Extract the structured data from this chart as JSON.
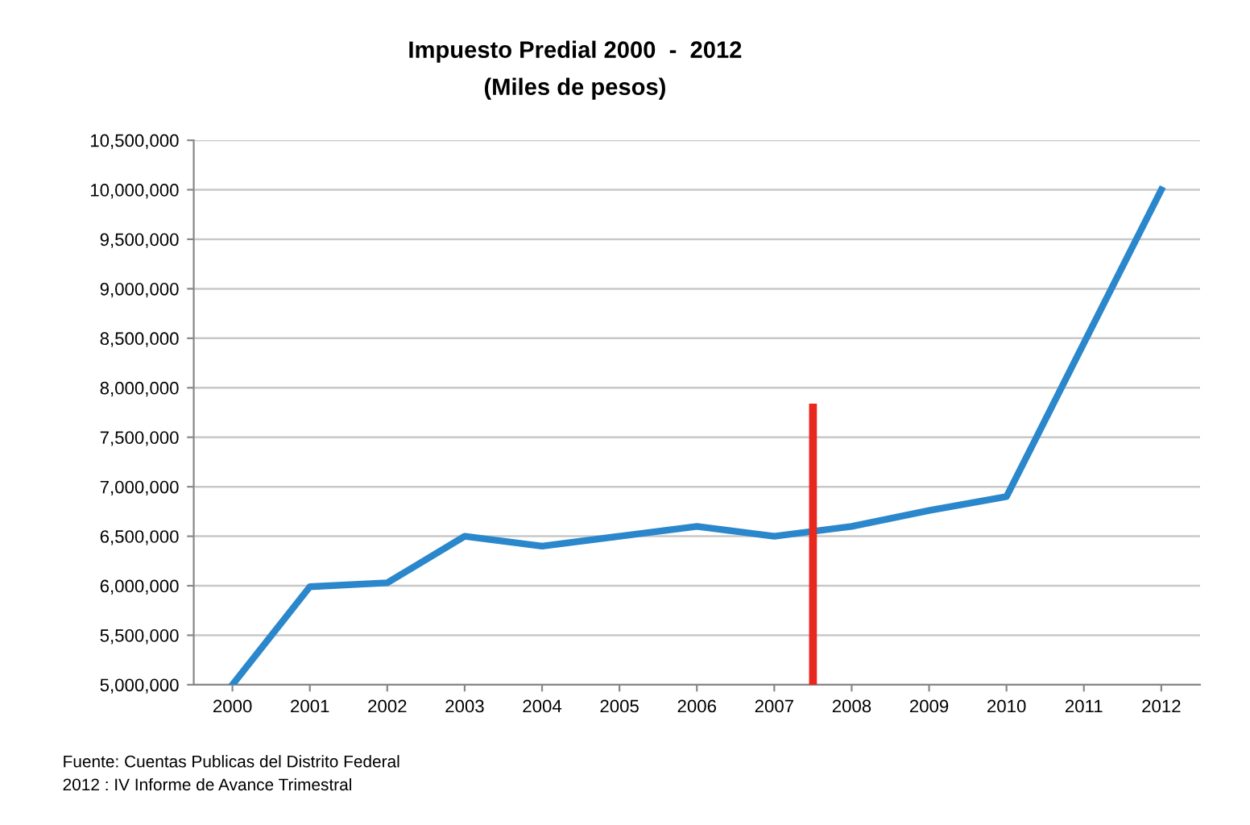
{
  "chart_data": {
    "type": "line",
    "title": "Impuesto Predial 2000  -  2012",
    "subtitle": "(Miles de pesos)",
    "x": [
      2000,
      2001,
      2002,
      2003,
      2004,
      2005,
      2006,
      2007,
      2008,
      2009,
      2010,
      2011,
      2012
    ],
    "series": [
      {
        "color": "#2b87cc",
        "values": [
          5000000,
          5990000,
          6030000,
          6500000,
          6400000,
          6500000,
          6600000,
          6500000,
          6600000,
          6760000,
          6900000,
          8450000,
          10000000
        ]
      },
      {
        "color": "#e8281e",
        "x": [
          2007.5,
          2007.5
        ],
        "values": [
          5000000,
          7800000
        ]
      }
    ],
    "xlim": [
      1999.5,
      2012.5
    ],
    "xticks": [
      2000,
      2001,
      2002,
      2003,
      2004,
      2005,
      2006,
      2007,
      2008,
      2009,
      2010,
      2011,
      2012
    ],
    "ylim": [
      5000000,
      10500000
    ],
    "yticks": [
      {
        "value": 5000000,
        "label": "5,000,000"
      },
      {
        "value": 5500000,
        "label": "5,500,000"
      },
      {
        "value": 6000000,
        "label": "6,000,000"
      },
      {
        "value": 6500000,
        "label": "6,500,000"
      },
      {
        "value": 7000000,
        "label": "7,000,000"
      },
      {
        "value": 7500000,
        "label": "7,500,000"
      },
      {
        "value": 8000000,
        "label": "8,000,000"
      },
      {
        "value": 8500000,
        "label": "8,500,000"
      },
      {
        "value": 9000000,
        "label": "9,000,000"
      },
      {
        "value": 9500000,
        "label": "9,500,000"
      },
      {
        "value": 10000000,
        "label": "10,000,000"
      },
      {
        "value": 10500000,
        "label": "10,500,000"
      }
    ],
    "grid": "y",
    "marker": "none",
    "line_style": "solid",
    "annotations": [
      "Fuente: Cuentas Publicas del Distrito Federal",
      "2012 : IV Informe de Avance Trimestral"
    ]
  }
}
